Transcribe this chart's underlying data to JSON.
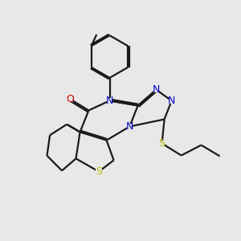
{
  "bg_color": "#e8e8e8",
  "bond_color": "#1a1a1a",
  "N_color": "#0000cc",
  "O_color": "#cc0000",
  "S_color": "#bbbb00",
  "line_width": 1.6,
  "figsize": [
    3.0,
    3.0
  ],
  "dpi": 100,
  "xlim": [
    0,
    10
  ],
  "ylim": [
    0,
    10
  ]
}
